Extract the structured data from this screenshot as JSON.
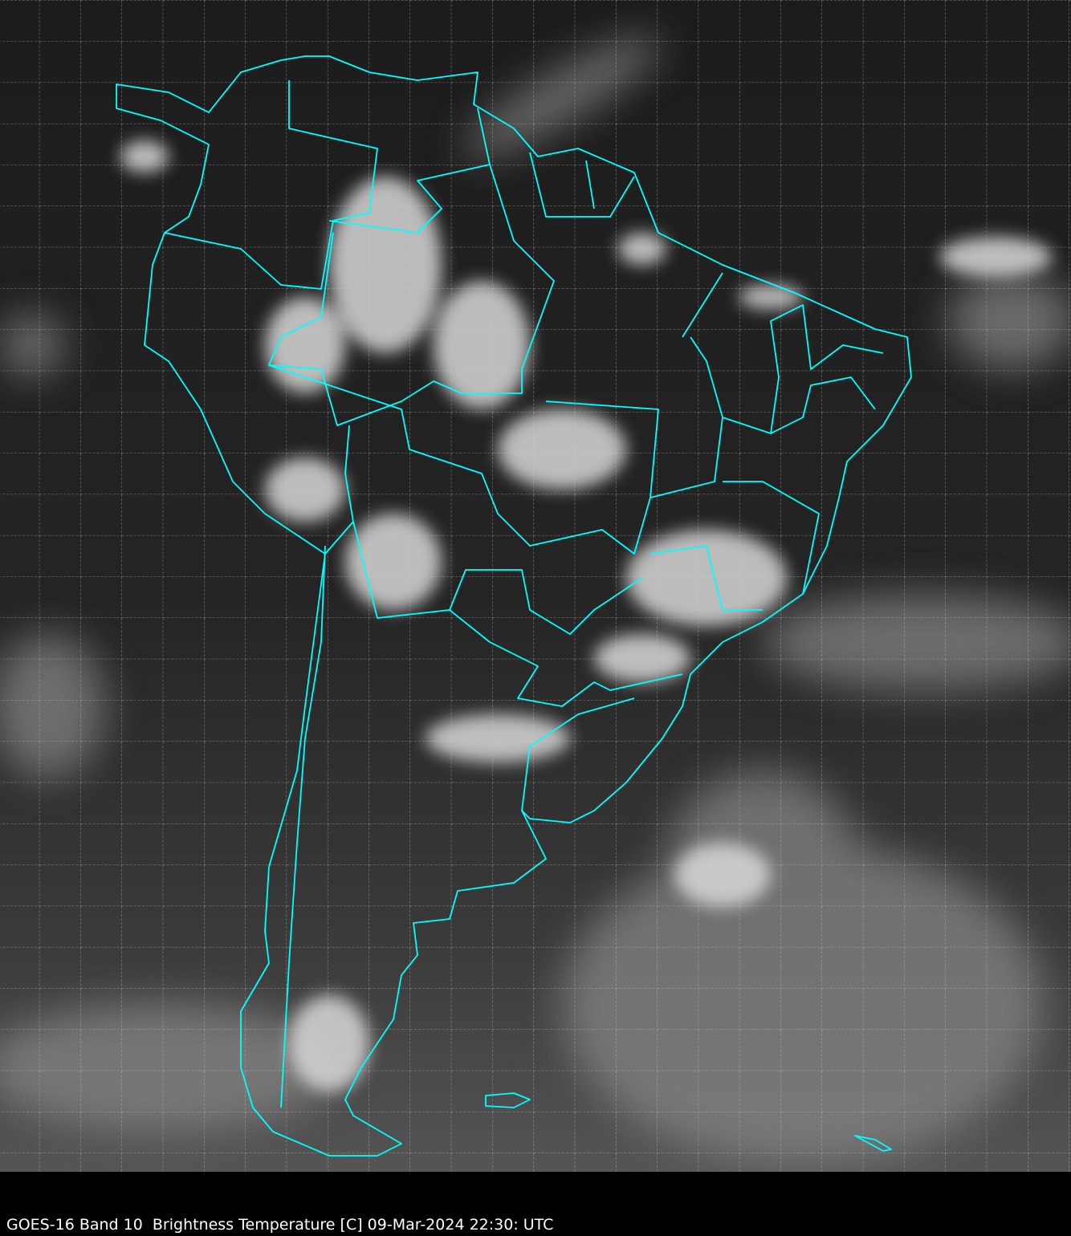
{
  "caption": "GOES-16 Band 10  Brightness Temperature [C] 09-Mar-2024 22:30: UTC",
  "map": {
    "region": "South America",
    "imagery": "grayscale infrared brightness temperature",
    "coastline_color": "#00ffff",
    "grid_color": "#cccccc",
    "grid_style": "dashed",
    "background_color": "#000000"
  }
}
